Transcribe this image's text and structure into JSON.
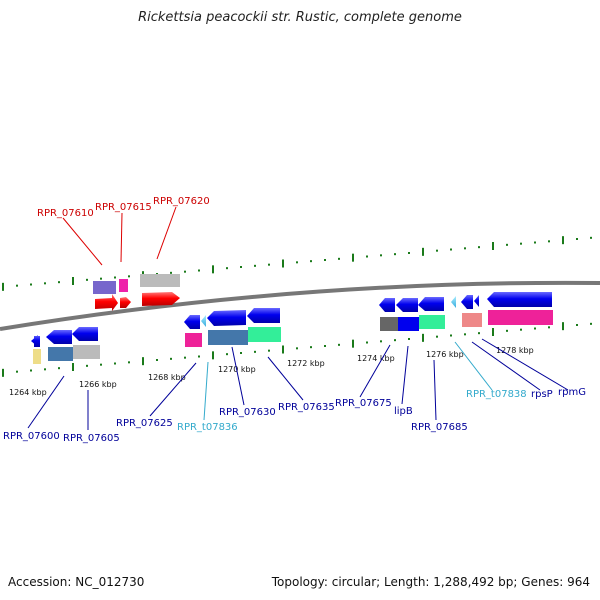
{
  "title": "Rickettsia peacockii str. Rustic, complete genome",
  "footer": {
    "accession_label": "Accession:",
    "accession": "NC_012730",
    "topology_label": "Topology:",
    "topology": "circular;",
    "length_label": "Length:",
    "length": "1,288,492 bp;",
    "genes_label": "Genes:",
    "genes": "964"
  },
  "ticks": [
    "1264 kbp",
    "1266 kbp",
    "1268 kbp",
    "1270 kbp",
    "1272 kbp",
    "1274 kbp",
    "1276 kbp",
    "1278 kbp"
  ],
  "gene_labels": [
    {
      "id": "RPR_07610",
      "color": "#cc0000"
    },
    {
      "id": "RPR_07615",
      "color": "#cc0000"
    },
    {
      "id": "RPR_07620",
      "color": "#cc0000"
    },
    {
      "id": "RPR_07600",
      "color": "#000099"
    },
    {
      "id": "RPR_07605",
      "color": "#000099"
    },
    {
      "id": "RPR_07625",
      "color": "#000099"
    },
    {
      "id": "RPR_t07836",
      "color": "#33aacc"
    },
    {
      "id": "RPR_07630",
      "color": "#000099"
    },
    {
      "id": "RPR_07635",
      "color": "#000099"
    },
    {
      "id": "RPR_07675",
      "color": "#000099"
    },
    {
      "id": "lipB",
      "color": "#000099"
    },
    {
      "id": "RPR_07685",
      "color": "#000099"
    },
    {
      "id": "RPR_t07838",
      "color": "#33aacc"
    },
    {
      "id": "rpsP",
      "color": "#000099"
    },
    {
      "id": "rpmG",
      "color": "#000099"
    }
  ],
  "colors": {
    "forward_gene": "#ff0000",
    "reverse_gene": "#0000ee",
    "backbone": "#777777",
    "tick": "#1a7a1a"
  }
}
